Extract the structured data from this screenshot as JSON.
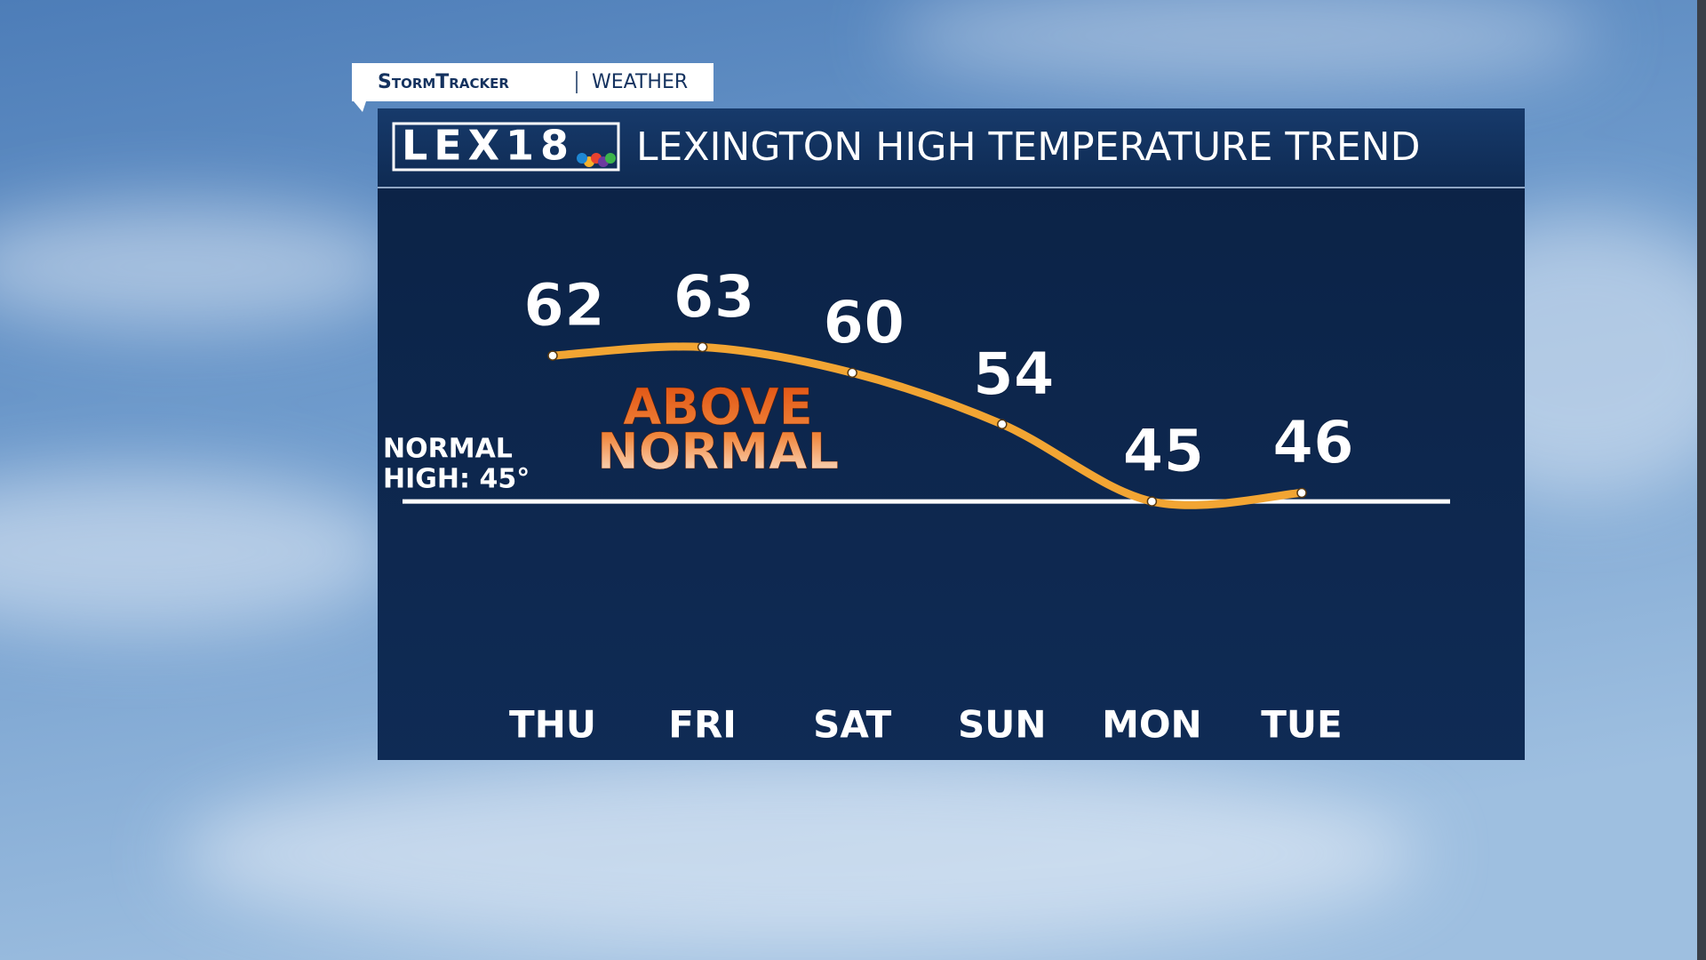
{
  "header": {
    "brand": "StormTracker",
    "section": "WEATHER"
  },
  "chart_data": {
    "type": "line",
    "logo": "LEX18",
    "title": "LEXINGTON HIGH TEMPERATURE TREND",
    "categories": [
      "THU",
      "FRI",
      "SAT",
      "SUN",
      "MON",
      "TUE"
    ],
    "values": [
      62,
      63,
      60,
      54,
      45,
      46
    ],
    "color": "#f2a533",
    "ylim": [
      22,
      81.5
    ],
    "reference_line": {
      "value": 45,
      "label": [
        "NORMAL",
        "HIGH: 45°"
      ]
    },
    "annotation": [
      "ABOVE",
      "NORMAL"
    ]
  }
}
